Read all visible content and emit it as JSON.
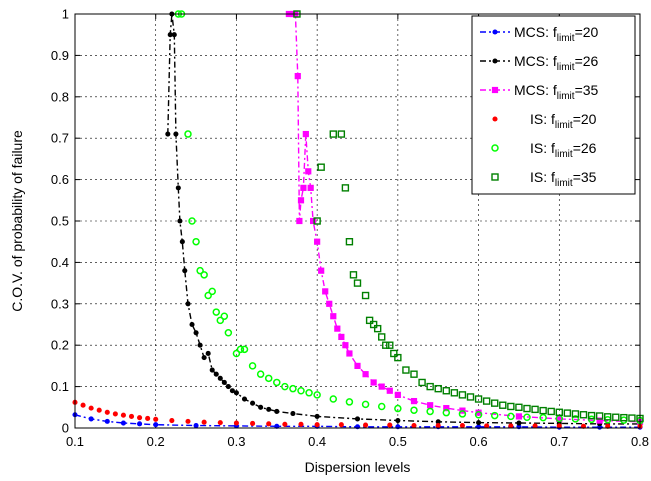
{
  "chart_data": {
    "type": "line",
    "title": "",
    "xlabel": "Dispersion levels",
    "ylabel": "C.O.V. of probability of failure",
    "xlim": [
      0.1,
      0.8
    ],
    "ylim": [
      0,
      1
    ],
    "xticks": [
      "0.1",
      "0.2",
      "0.3",
      "0.4",
      "0.5",
      "0.6",
      "0.7",
      "0.8"
    ],
    "yticks": [
      "0",
      "0.1",
      "0.2",
      "0.3",
      "0.4",
      "0.5",
      "0.6",
      "0.7",
      "0.8",
      "0.9",
      "1"
    ],
    "grid": true,
    "legend_position": "top-right",
    "series": [
      {
        "name": "MCS: flimit=20",
        "legend_main": "MCS: f",
        "legend_sub": "limit",
        "legend_tail": "=20",
        "style": "line-marker",
        "marker": "dot",
        "dash": "6 3 2 3",
        "color": "#0000ff",
        "x": [
          0.1,
          0.12,
          0.14,
          0.16,
          0.18,
          0.2,
          0.25,
          0.3,
          0.35,
          0.4,
          0.45,
          0.5,
          0.55,
          0.6,
          0.65,
          0.7,
          0.75,
          0.8
        ],
        "y": [
          0.032,
          0.022,
          0.016,
          0.012,
          0.01,
          0.008,
          0.006,
          0.005,
          0.004,
          0.004,
          0.003,
          0.003,
          0.003,
          0.003,
          0.003,
          0.002,
          0.002,
          0.002
        ]
      },
      {
        "name": "MCS: flimit=26",
        "legend_main": "MCS: f",
        "legend_sub": "limit",
        "legend_tail": "=26",
        "style": "line-marker",
        "marker": "dot",
        "dash": "6 3 2 3",
        "color": "#000000",
        "x": [
          0.215,
          0.218,
          0.22,
          0.223,
          0.225,
          0.228,
          0.23,
          0.233,
          0.236,
          0.24,
          0.245,
          0.25,
          0.255,
          0.26,
          0.265,
          0.27,
          0.275,
          0.28,
          0.285,
          0.29,
          0.295,
          0.3,
          0.31,
          0.32,
          0.33,
          0.34,
          0.35,
          0.37,
          0.4,
          0.45,
          0.5,
          0.55,
          0.6,
          0.65,
          0.7,
          0.75,
          0.8
        ],
        "y": [
          0.71,
          0.95,
          1.0,
          0.95,
          0.71,
          0.58,
          0.5,
          0.45,
          0.38,
          0.3,
          0.25,
          0.23,
          0.2,
          0.17,
          0.18,
          0.14,
          0.13,
          0.12,
          0.11,
          0.1,
          0.09,
          0.085,
          0.07,
          0.06,
          0.05,
          0.045,
          0.04,
          0.035,
          0.028,
          0.022,
          0.018,
          0.015,
          0.013,
          0.012,
          0.011,
          0.01,
          0.01
        ]
      },
      {
        "name": "MCS: flimit=35",
        "legend_main": "MCS: f",
        "legend_sub": "limit",
        "legend_tail": "=35",
        "style": "line-marker",
        "marker": "square",
        "dash": "6 3 2 3",
        "color": "#ff00ff",
        "x": [
          0.365,
          0.37,
          0.373,
          0.376,
          0.378,
          0.38,
          0.383,
          0.386,
          0.389,
          0.392,
          0.395,
          0.4,
          0.405,
          0.41,
          0.415,
          0.42,
          0.425,
          0.43,
          0.435,
          0.44,
          0.45,
          0.46,
          0.47,
          0.48,
          0.49,
          0.5,
          0.52,
          0.54,
          0.56,
          0.58,
          0.6,
          0.65,
          0.7,
          0.75,
          0.8
        ],
        "y": [
          1.0,
          1.0,
          1.0,
          0.85,
          0.5,
          0.55,
          0.58,
          0.71,
          0.62,
          0.58,
          0.5,
          0.45,
          0.38,
          0.33,
          0.3,
          0.27,
          0.24,
          0.22,
          0.2,
          0.18,
          0.15,
          0.13,
          0.11,
          0.1,
          0.09,
          0.08,
          0.065,
          0.055,
          0.048,
          0.042,
          0.037,
          0.028,
          0.022,
          0.018,
          0.015
        ]
      },
      {
        "name": "IS: flimit=20",
        "legend_main": "IS: f",
        "legend_sub": "limit",
        "legend_tail": "=20",
        "style": "marker",
        "marker": "dot",
        "color": "#ff0000",
        "x": [
          0.1,
          0.11,
          0.12,
          0.13,
          0.14,
          0.15,
          0.16,
          0.17,
          0.18,
          0.19,
          0.2,
          0.22,
          0.24,
          0.26,
          0.28,
          0.3,
          0.32,
          0.34,
          0.36,
          0.38,
          0.4,
          0.43,
          0.46,
          0.49,
          0.52,
          0.55,
          0.58,
          0.61,
          0.64,
          0.67,
          0.7,
          0.73,
          0.76,
          0.8
        ],
        "y": [
          0.062,
          0.055,
          0.048,
          0.043,
          0.038,
          0.034,
          0.031,
          0.028,
          0.025,
          0.023,
          0.021,
          0.018,
          0.016,
          0.014,
          0.013,
          0.012,
          0.011,
          0.01,
          0.009,
          0.009,
          0.008,
          0.008,
          0.007,
          0.007,
          0.006,
          0.006,
          0.006,
          0.005,
          0.005,
          0.005,
          0.005,
          0.004,
          0.004,
          0.004
        ]
      },
      {
        "name": "IS: flimit=26",
        "legend_main": "IS: f",
        "legend_sub": "limit",
        "legend_tail": "=26",
        "style": "marker",
        "marker": "circle",
        "color": "#00ff00",
        "x": [
          0.228,
          0.232,
          0.24,
          0.245,
          0.25,
          0.255,
          0.26,
          0.265,
          0.27,
          0.275,
          0.28,
          0.285,
          0.29,
          0.3,
          0.305,
          0.31,
          0.32,
          0.33,
          0.34,
          0.35,
          0.36,
          0.37,
          0.38,
          0.39,
          0.4,
          0.42,
          0.44,
          0.46,
          0.48,
          0.5,
          0.52,
          0.54,
          0.56,
          0.58,
          0.6,
          0.62,
          0.64,
          0.66,
          0.68,
          0.7,
          0.72,
          0.74,
          0.76,
          0.78,
          0.8
        ],
        "y": [
          1.0,
          1.0,
          0.71,
          0.5,
          0.45,
          0.38,
          0.37,
          0.32,
          0.33,
          0.28,
          0.26,
          0.27,
          0.23,
          0.18,
          0.19,
          0.19,
          0.15,
          0.13,
          0.12,
          0.11,
          0.1,
          0.095,
          0.09,
          0.085,
          0.08,
          0.07,
          0.063,
          0.057,
          0.052,
          0.047,
          0.043,
          0.04,
          0.037,
          0.034,
          0.032,
          0.03,
          0.028,
          0.026,
          0.025,
          0.023,
          0.022,
          0.021,
          0.02,
          0.019,
          0.018
        ]
      },
      {
        "name": "IS: flimit=35",
        "legend_main": "IS: f",
        "legend_sub": "limit",
        "legend_tail": "=35",
        "style": "marker",
        "marker": "square-open",
        "color": "#008000",
        "x": [
          0.375,
          0.4,
          0.405,
          0.42,
          0.43,
          0.435,
          0.44,
          0.445,
          0.45,
          0.46,
          0.465,
          0.47,
          0.475,
          0.48,
          0.485,
          0.49,
          0.495,
          0.5,
          0.51,
          0.52,
          0.53,
          0.54,
          0.55,
          0.56,
          0.57,
          0.58,
          0.59,
          0.6,
          0.61,
          0.62,
          0.63,
          0.64,
          0.65,
          0.66,
          0.67,
          0.68,
          0.69,
          0.7,
          0.71,
          0.72,
          0.73,
          0.74,
          0.75,
          0.76,
          0.77,
          0.78,
          0.79,
          0.8
        ],
        "y": [
          1.0,
          0.5,
          0.63,
          0.71,
          0.71,
          0.58,
          0.45,
          0.37,
          0.35,
          0.32,
          0.26,
          0.25,
          0.24,
          0.22,
          0.2,
          0.2,
          0.18,
          0.17,
          0.14,
          0.13,
          0.11,
          0.1,
          0.095,
          0.09,
          0.085,
          0.08,
          0.075,
          0.07,
          0.065,
          0.06,
          0.055,
          0.052,
          0.05,
          0.047,
          0.045,
          0.042,
          0.04,
          0.038,
          0.036,
          0.034,
          0.032,
          0.03,
          0.029,
          0.027,
          0.026,
          0.025,
          0.024,
          0.023
        ]
      }
    ]
  }
}
